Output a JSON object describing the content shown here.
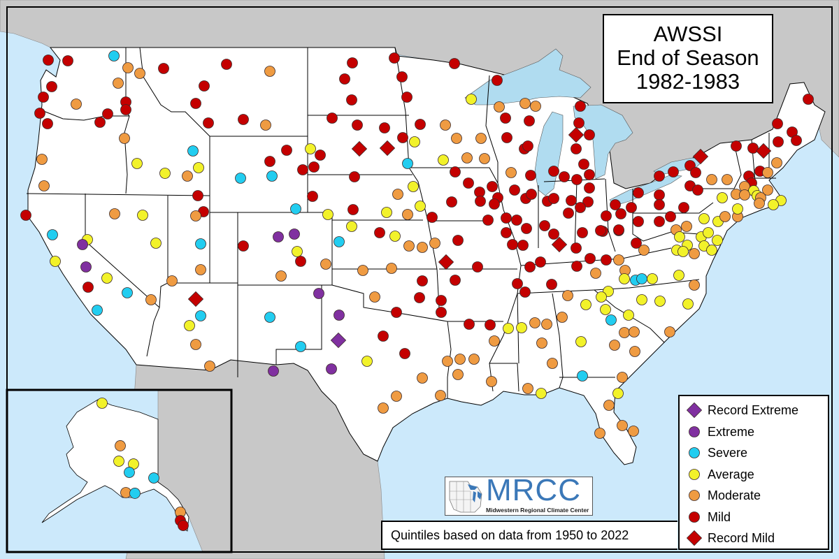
{
  "title": {
    "line1": "AWSSI",
    "line2": "End of Season",
    "line3": "1982-1983"
  },
  "footnote": "Quintiles based on data from 1950 to 2022",
  "logo": {
    "acronym": "MRCC",
    "name": "Midwestern Regional Climate Center"
  },
  "colors": {
    "ocean": "#cce9fb",
    "land": "#ffffff",
    "foreign_land": "#c8c8c8",
    "lakes": "#b0dcf0"
  },
  "legend": [
    {
      "code": "RE",
      "label": "Record Extreme",
      "shape": "diamond",
      "color": "#8030a0"
    },
    {
      "code": "X",
      "label": "Extreme",
      "shape": "circle",
      "color": "#8030a0"
    },
    {
      "code": "S",
      "label": "Severe",
      "shape": "circle",
      "color": "#22cdf0"
    },
    {
      "code": "A",
      "label": "Average",
      "shape": "circle",
      "color": "#f2f22a"
    },
    {
      "code": "MO",
      "label": "Moderate",
      "shape": "circle",
      "color": "#ef9b42"
    },
    {
      "code": "MI",
      "label": "Mild",
      "shape": "circle",
      "color": "#c40000"
    },
    {
      "code": "RM",
      "label": "Record Mild",
      "shape": "diamond",
      "color": "#c40000"
    }
  ],
  "stations": [
    [
      -122.55,
      48.56,
      "MI"
    ],
    [
      -121.15,
      48.52,
      "MI"
    ],
    [
      -117.85,
      48.8,
      "S"
    ],
    [
      -116.85,
      48.12,
      "MO"
    ],
    [
      -116.0,
      47.8,
      "MO"
    ],
    [
      -114.3,
      48.08,
      "MI"
    ],
    [
      -109.8,
      48.32,
      "MI"
    ],
    [
      -106.7,
      47.92,
      "MO"
    ],
    [
      -122.3,
      47.04,
      "MI"
    ],
    [
      -122.9,
      46.44,
      "MI"
    ],
    [
      -120.55,
      46.04,
      "MO"
    ],
    [
      -117.55,
      47.24,
      "MO"
    ],
    [
      -117.0,
      46.16,
      "MI"
    ],
    [
      -117.0,
      45.72,
      "MI"
    ],
    [
      -118.3,
      45.48,
      "MI"
    ],
    [
      -118.85,
      45.0,
      "MI"
    ],
    [
      -123.15,
      45.52,
      "MI"
    ],
    [
      -122.6,
      44.92,
      "MI"
    ],
    [
      -111.4,
      47.08,
      "MI"
    ],
    [
      -112.0,
      46.08,
      "MI"
    ],
    [
      -111.1,
      44.96,
      "MI"
    ],
    [
      -108.6,
      45.16,
      "MI"
    ],
    [
      -107.0,
      44.84,
      "MO"
    ],
    [
      -117.1,
      44.08,
      "MO"
    ],
    [
      -112.2,
      43.36,
      "S"
    ],
    [
      -123.0,
      42.88,
      "MO"
    ],
    [
      -122.85,
      41.36,
      "MO"
    ],
    [
      -116.2,
      42.64,
      "A"
    ],
    [
      -114.2,
      42.08,
      "A"
    ],
    [
      -112.6,
      41.92,
      "MO"
    ],
    [
      -111.8,
      42.4,
      "A"
    ],
    [
      -111.85,
      40.8,
      "MI"
    ],
    [
      -111.45,
      39.88,
      "MI"
    ],
    [
      -112.0,
      39.64,
      "MO"
    ],
    [
      -124.15,
      39.68,
      "MI"
    ],
    [
      -117.8,
      39.76,
      "MO"
    ],
    [
      -115.8,
      39.68,
      "A"
    ],
    [
      -122.25,
      38.56,
      "S"
    ],
    [
      -119.75,
      38.28,
      "A"
    ],
    [
      -120.1,
      38.0,
      "X"
    ],
    [
      -122.05,
      37.04,
      "A"
    ],
    [
      -119.85,
      36.72,
      "X"
    ],
    [
      -119.7,
      35.56,
      "MI"
    ],
    [
      -118.35,
      36.08,
      "A"
    ],
    [
      -116.9,
      35.24,
      "S"
    ],
    [
      -119.05,
      34.24,
      "S"
    ],
    [
      -114.85,
      38.08,
      "A"
    ],
    [
      -115.2,
      34.84,
      "MO"
    ],
    [
      -113.7,
      35.92,
      "MO"
    ],
    [
      -112.0,
      34.88,
      "RM"
    ],
    [
      -111.65,
      38.04,
      "S"
    ],
    [
      -111.65,
      36.56,
      "MO"
    ],
    [
      -111.65,
      33.92,
      "S"
    ],
    [
      -112.45,
      33.36,
      "A"
    ],
    [
      -112.0,
      32.28,
      "MO"
    ],
    [
      -111.0,
      31.04,
      "MO"
    ],
    [
      -108.8,
      41.8,
      "S"
    ],
    [
      -106.55,
      41.92,
      "S"
    ],
    [
      -106.7,
      42.76,
      "MI"
    ],
    [
      -105.5,
      43.4,
      "MI"
    ],
    [
      -104.85,
      40.04,
      "S"
    ],
    [
      -106.1,
      38.44,
      "X"
    ],
    [
      -104.95,
      38.6,
      "X"
    ],
    [
      -104.75,
      37.6,
      "A"
    ],
    [
      -104.5,
      37.04,
      "MI"
    ],
    [
      -108.6,
      37.92,
      "MI"
    ],
    [
      -102.7,
      36.88,
      "MO"
    ],
    [
      -105.9,
      36.2,
      "MO"
    ],
    [
      -106.7,
      33.84,
      "S"
    ],
    [
      -104.5,
      32.16,
      "S"
    ],
    [
      -106.45,
      30.76,
      "X"
    ],
    [
      -103.2,
      35.2,
      "X"
    ],
    [
      -101.75,
      33.96,
      "X"
    ],
    [
      -101.8,
      32.52,
      "RE"
    ],
    [
      -102.3,
      30.88,
      "X"
    ],
    [
      -99.75,
      31.32,
      "A"
    ],
    [
      -100.8,
      48.4,
      "MI"
    ],
    [
      -97.8,
      48.68,
      "MI"
    ],
    [
      -101.35,
      47.48,
      "MI"
    ],
    [
      -97.25,
      47.6,
      "MI"
    ],
    [
      -100.85,
      46.28,
      "MI"
    ],
    [
      -96.9,
      46.44,
      "MI"
    ],
    [
      -102.25,
      45.24,
      "MI"
    ],
    [
      -100.45,
      44.84,
      "MI"
    ],
    [
      -98.5,
      44.68,
      "MI"
    ],
    [
      -100.3,
      43.48,
      "RM"
    ],
    [
      -98.3,
      43.52,
      "RM"
    ],
    [
      -97.2,
      44.12,
      "MI"
    ],
    [
      -96.35,
      43.88,
      "A"
    ],
    [
      -95.95,
      44.88,
      "MI"
    ],
    [
      -96.85,
      42.64,
      "S"
    ],
    [
      -103.8,
      43.48,
      "A"
    ],
    [
      -103.1,
      43.12,
      "MI"
    ],
    [
      -103.55,
      42.44,
      "MI"
    ],
    [
      -104.35,
      42.28,
      "MI"
    ],
    [
      -100.65,
      41.88,
      "MI"
    ],
    [
      -103.65,
      40.76,
      "MI"
    ],
    [
      -100.75,
      40.0,
      "MI"
    ],
    [
      -97.55,
      40.88,
      "MO"
    ],
    [
      -96.45,
      41.32,
      "A"
    ],
    [
      -95.95,
      40.2,
      "A"
    ],
    [
      -98.35,
      39.84,
      "A"
    ],
    [
      -96.85,
      39.72,
      "MO"
    ],
    [
      -102.55,
      39.72,
      "A"
    ],
    [
      -100.85,
      39.04,
      "A"
    ],
    [
      -98.85,
      38.68,
      "MI"
    ],
    [
      -97.75,
      38.48,
      "A"
    ],
    [
      -101.75,
      38.16,
      "S"
    ],
    [
      -96.75,
      37.92,
      "MO"
    ],
    [
      -95.8,
      37.84,
      "MO"
    ],
    [
      -94.9,
      38.08,
      "MO"
    ],
    [
      -100.05,
      36.52,
      "MO"
    ],
    [
      -98.0,
      36.64,
      "MO"
    ],
    [
      -95.8,
      35.92,
      "MI"
    ],
    [
      -93.5,
      48.36,
      "MI"
    ],
    [
      -92.3,
      46.32,
      "A"
    ],
    [
      -90.45,
      47.4,
      "MI"
    ],
    [
      -90.3,
      45.88,
      "MO"
    ],
    [
      -88.45,
      46.08,
      "MO"
    ],
    [
      -87.7,
      45.92,
      "MO"
    ],
    [
      -89.85,
      45.24,
      "MI"
    ],
    [
      -88.15,
      45.08,
      "MI"
    ],
    [
      -89.75,
      44.12,
      "MI"
    ],
    [
      -94.15,
      44.84,
      "MO"
    ],
    [
      -93.35,
      44.08,
      "MO"
    ],
    [
      -91.6,
      44.08,
      "MO"
    ],
    [
      -88.5,
      43.48,
      "MI"
    ],
    [
      -88.25,
      43.64,
      "MI"
    ],
    [
      -84.5,
      45.92,
      "MI"
    ],
    [
      -84.6,
      44.96,
      "MI"
    ],
    [
      -84.8,
      44.28,
      "RM"
    ],
    [
      -83.85,
      44.28,
      "MI"
    ],
    [
      -84.8,
      43.48,
      "MI"
    ],
    [
      -84.25,
      42.6,
      "MI"
    ],
    [
      -89.45,
      42.12,
      "MO"
    ],
    [
      -88.05,
      41.96,
      "MI"
    ],
    [
      -86.4,
      42.2,
      "MI"
    ],
    [
      -85.65,
      41.88,
      "MI"
    ],
    [
      -84.75,
      41.72,
      "MI"
    ],
    [
      -83.85,
      42.0,
      "MI"
    ],
    [
      -83.85,
      41.24,
      "MI"
    ],
    [
      -92.6,
      42.96,
      "MO"
    ],
    [
      -91.35,
      42.92,
      "MO"
    ],
    [
      -94.3,
      42.84,
      "A"
    ],
    [
      -93.45,
      42.16,
      "MI"
    ],
    [
      -92.5,
      41.52,
      "MI"
    ],
    [
      -90.8,
      41.32,
      "MI"
    ],
    [
      -91.7,
      41.0,
      "MI"
    ],
    [
      -91.65,
      40.48,
      "MI"
    ],
    [
      -90.4,
      40.68,
      "MI"
    ],
    [
      -90.65,
      40.32,
      "MI"
    ],
    [
      -89.2,
      41.12,
      "MI"
    ],
    [
      -88.4,
      40.64,
      "MI"
    ],
    [
      -88.0,
      40.88,
      "MI"
    ],
    [
      -86.85,
      40.48,
      "MI"
    ],
    [
      -86.4,
      40.64,
      "MI"
    ],
    [
      -85.15,
      40.52,
      "MI"
    ],
    [
      -83.95,
      40.44,
      "MI"
    ],
    [
      -84.5,
      40.12,
      "MI"
    ],
    [
      -85.35,
      39.8,
      "MI"
    ],
    [
      -93.7,
      40.44,
      "MI"
    ],
    [
      -95.1,
      39.56,
      "MI"
    ],
    [
      -91.1,
      39.4,
      "MI"
    ],
    [
      -89.8,
      39.52,
      "MI"
    ],
    [
      -89.05,
      39.4,
      "MI"
    ],
    [
      -88.35,
      38.92,
      "MI"
    ],
    [
      -87.05,
      39.08,
      "MI"
    ],
    [
      -86.4,
      38.6,
      "MI"
    ],
    [
      -84.35,
      38.68,
      "MI"
    ],
    [
      -89.8,
      38.68,
      "MI"
    ],
    [
      -89.35,
      38.0,
      "MI"
    ],
    [
      -88.6,
      37.96,
      "MI"
    ],
    [
      -86.0,
      38.0,
      "RM"
    ],
    [
      -84.8,
      37.8,
      "MI"
    ],
    [
      -87.35,
      37.0,
      "MI"
    ],
    [
      -88.1,
      36.72,
      "MI"
    ],
    [
      -89.0,
      35.76,
      "MI"
    ],
    [
      -88.45,
      35.28,
      "MI"
    ],
    [
      -86.55,
      35.72,
      "MI"
    ],
    [
      -84.75,
      36.76,
      "MI"
    ],
    [
      -83.8,
      37.2,
      "MI"
    ],
    [
      -82.9,
      38.76,
      "MI"
    ],
    [
      -81.75,
      38.8,
      "MI"
    ],
    [
      -93.25,
      38.24,
      "MI"
    ],
    [
      -94.1,
      37.0,
      "RM"
    ],
    [
      -91.85,
      36.72,
      "MI"
    ],
    [
      -93.45,
      35.96,
      "MI"
    ],
    [
      -96.0,
      34.96,
      "MI"
    ],
    [
      -94.45,
      34.8,
      "MI"
    ],
    [
      -97.65,
      34.12,
      "MI"
    ],
    [
      -99.2,
      35.0,
      "MO"
    ],
    [
      -98.6,
      32.76,
      "MI"
    ],
    [
      -97.05,
      31.76,
      "MI"
    ],
    [
      -94.45,
      34.12,
      "MI"
    ],
    [
      -92.45,
      33.44,
      "MI"
    ],
    [
      -90.95,
      33.4,
      "MI"
    ],
    [
      -90.65,
      32.48,
      "MO"
    ],
    [
      -94.0,
      31.32,
      "MO"
    ],
    [
      -93.1,
      31.44,
      "MO"
    ],
    [
      -92.1,
      31.44,
      "MO"
    ],
    [
      -89.65,
      33.2,
      "A"
    ],
    [
      -88.7,
      33.24,
      "A"
    ],
    [
      -87.75,
      33.52,
      "MO"
    ],
    [
      -86.9,
      33.44,
      "MO"
    ],
    [
      -85.8,
      33.84,
      "MO"
    ],
    [
      -85.4,
      35.08,
      "MO"
    ],
    [
      -84.1,
      34.56,
      "A"
    ],
    [
      -82.7,
      34.28,
      "A"
    ],
    [
      -81.05,
      33.96,
      "A"
    ],
    [
      -82.3,
      33.68,
      "S"
    ],
    [
      -81.35,
      32.96,
      "MO"
    ],
    [
      -84.45,
      32.44,
      "A"
    ],
    [
      -82.05,
      32.24,
      "MO"
    ],
    [
      -80.65,
      33.0,
      "MO"
    ],
    [
      -80.6,
      31.88,
      "MO"
    ],
    [
      -78.1,
      33.0,
      "MO"
    ],
    [
      -86.5,
      31.2,
      "MO"
    ],
    [
      -87.25,
      32.36,
      "MO"
    ],
    [
      -84.35,
      30.48,
      "S"
    ],
    [
      -81.5,
      30.4,
      "MO"
    ],
    [
      -81.8,
      29.48,
      "A"
    ],
    [
      -82.45,
      28.8,
      "MO"
    ],
    [
      -83.1,
      27.2,
      "MO"
    ],
    [
      -81.5,
      27.64,
      "MO"
    ],
    [
      -80.7,
      27.32,
      "MO"
    ],
    [
      -88.25,
      29.76,
      "MO"
    ],
    [
      -87.3,
      29.48,
      "A"
    ],
    [
      -90.85,
      30.16,
      "MO"
    ],
    [
      -93.25,
      30.56,
      "MO"
    ],
    [
      -94.5,
      29.36,
      "MO"
    ],
    [
      -95.8,
      30.36,
      "MO"
    ],
    [
      -97.65,
      29.32,
      "MO"
    ],
    [
      -98.6,
      28.64,
      "MO"
    ],
    [
      -68.2,
      46.32,
      "MI"
    ],
    [
      -70.4,
      44.92,
      "MI"
    ],
    [
      -69.35,
      44.44,
      "MI"
    ],
    [
      -69.05,
      43.96,
      "MI"
    ],
    [
      -70.35,
      43.88,
      "MI"
    ],
    [
      -73.35,
      43.64,
      "MI"
    ],
    [
      -72.15,
      43.52,
      "MI"
    ],
    [
      -71.4,
      43.36,
      "RM"
    ],
    [
      -75.9,
      43.04,
      "RM"
    ],
    [
      -70.45,
      42.68,
      "MO"
    ],
    [
      -76.65,
      42.52,
      "MI"
    ],
    [
      -76.25,
      42.12,
      "MI"
    ],
    [
      -77.85,
      42.16,
      "MI"
    ],
    [
      -78.85,
      41.92,
      "MI"
    ],
    [
      -75.1,
      41.72,
      "MO"
    ],
    [
      -74.0,
      41.72,
      "MO"
    ],
    [
      -71.65,
      42.2,
      "MI"
    ],
    [
      -71.1,
      42.12,
      "MO"
    ],
    [
      -72.45,
      41.92,
      "MI"
    ],
    [
      -72.25,
      41.52,
      "MI"
    ],
    [
      -72.75,
      41.32,
      "MO"
    ],
    [
      -72.1,
      41.08,
      "A"
    ],
    [
      -71.1,
      41.12,
      "MO"
    ],
    [
      -73.35,
      40.88,
      "MO"
    ],
    [
      -72.75,
      40.84,
      "MO"
    ],
    [
      -71.85,
      40.8,
      "A"
    ],
    [
      -71.6,
      40.68,
      "MO"
    ],
    [
      -71.7,
      40.36,
      "MO"
    ],
    [
      -70.15,
      40.52,
      "A"
    ],
    [
      -70.7,
      40.28,
      "A"
    ],
    [
      -76.65,
      41.36,
      "MI"
    ],
    [
      -76.1,
      41.12,
      "MI"
    ],
    [
      -74.35,
      40.68,
      "A"
    ],
    [
      -78.85,
      40.84,
      "MI"
    ],
    [
      -78.85,
      40.28,
      "MI"
    ],
    [
      -77.1,
      40.12,
      "MI"
    ],
    [
      -80.35,
      40.96,
      "MI"
    ],
    [
      -80.35,
      39.32,
      "MI"
    ],
    [
      -78.85,
      39.32,
      "MI"
    ],
    [
      -78.05,
      39.6,
      "MI"
    ],
    [
      -80.85,
      40.12,
      "MI"
    ],
    [
      -81.6,
      39.76,
      "MI"
    ],
    [
      -82.0,
      40.28,
      "MI"
    ],
    [
      -82.65,
      39.64,
      "MI"
    ],
    [
      -81.75,
      38.84,
      "MI"
    ],
    [
      -83.05,
      38.8,
      "MI"
    ],
    [
      -75.65,
      39.48,
      "A"
    ],
    [
      -74.65,
      39.32,
      "A"
    ],
    [
      -74.15,
      39.6,
      "MO"
    ],
    [
      -73.25,
      39.6,
      "MO"
    ],
    [
      -73.25,
      40.04,
      "A"
    ],
    [
      -77.65,
      38.84,
      "MO"
    ],
    [
      -76.9,
      39.04,
      "MO"
    ],
    [
      -77.4,
      38.44,
      "A"
    ],
    [
      -75.85,
      38.44,
      "A"
    ],
    [
      -75.35,
      38.68,
      "A"
    ],
    [
      -74.7,
      38.24,
      "A"
    ],
    [
      -75.65,
      37.92,
      "A"
    ],
    [
      -75.1,
      37.68,
      "A"
    ],
    [
      -76.85,
      37.96,
      "A"
    ],
    [
      -77.6,
      37.68,
      "A"
    ],
    [
      -77.15,
      37.6,
      "A"
    ],
    [
      -76.35,
      37.48,
      "MO"
    ],
    [
      -80.5,
      38.08,
      "MI"
    ],
    [
      -79.95,
      37.68,
      "MO"
    ],
    [
      -82.65,
      37.12,
      "MI"
    ],
    [
      -81.75,
      37.12,
      "MO"
    ],
    [
      -81.3,
      36.52,
      "MO"
    ],
    [
      -83.4,
      36.36,
      "MO"
    ],
    [
      -81.35,
      36.04,
      "A"
    ],
    [
      -80.55,
      35.96,
      "S"
    ],
    [
      -80.1,
      36.04,
      "S"
    ],
    [
      -79.35,
      36.04,
      "A"
    ],
    [
      -77.45,
      36.24,
      "A"
    ],
    [
      -76.35,
      35.68,
      "MO"
    ],
    [
      -82.5,
      35.32,
      "A"
    ],
    [
      -80.1,
      34.84,
      "A"
    ],
    [
      -78.8,
      34.76,
      "A"
    ],
    [
      -76.8,
      34.6,
      "A"
    ],
    [
      -83.0,
      35.0,
      "A"
    ]
  ],
  "alaska_stations": [
    [
      -154.25,
      70.5,
      "A"
    ],
    [
      -151.0,
      62.88,
      "MO"
    ],
    [
      -151.25,
      60.12,
      "A"
    ],
    [
      -148.63,
      59.62,
      "A"
    ],
    [
      -149.38,
      58.12,
      "S"
    ],
    [
      -145.0,
      57.12,
      "S"
    ],
    [
      -150.0,
      54.5,
      "MO"
    ],
    [
      -148.38,
      54.38,
      "S"
    ],
    [
      -140.25,
      51.0,
      "MO"
    ],
    [
      -140.25,
      49.5,
      "MI"
    ],
    [
      -139.75,
      48.62,
      "MI"
    ]
  ]
}
